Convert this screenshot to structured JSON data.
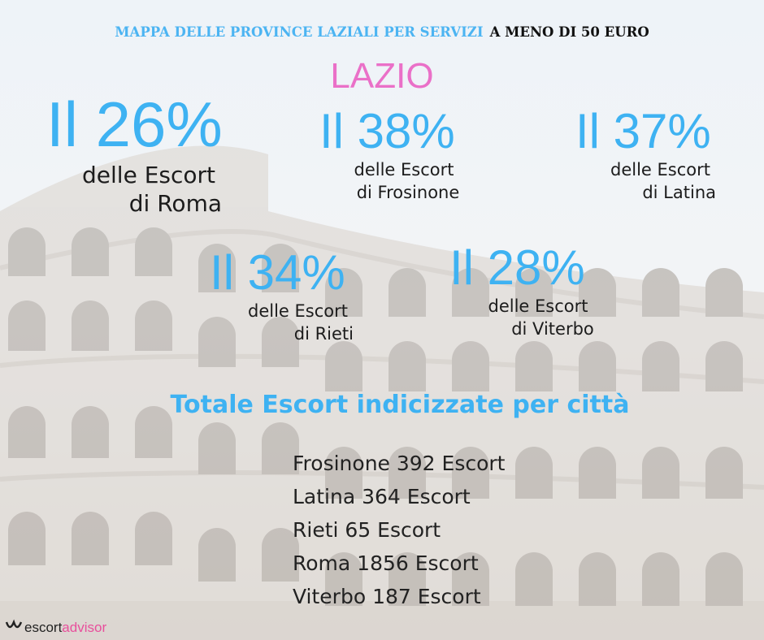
{
  "header": {
    "title_blue": "MAPPA DELLE PROVINCE  LAZIALI PER SERVIZI",
    "title_black": "A MENO DI 50 EURO",
    "region": "LAZIO"
  },
  "stats": [
    {
      "value": "Il 26%",
      "line1": "delle Escort",
      "line2": "di Roma"
    },
    {
      "value": "Il 38%",
      "line1": "delle Escort",
      "line2": "di Frosinone"
    },
    {
      "value": "Il 37%",
      "line1": "delle Escort",
      "line2": "di Latina"
    },
    {
      "value": "Il 34%",
      "line1": "delle Escort",
      "line2": "di Rieti"
    },
    {
      "value": "Il 28%",
      "line1": "delle Escort",
      "line2": "di Viterbo"
    }
  ],
  "totals": {
    "heading": "Totale Escort indicizzate per città",
    "items": [
      "Frosinone 392 Escort",
      "Latina 364 Escort",
      "Rieti 65 Escort",
      "Roma 1856 Escort",
      "Viterbo 187 Escort"
    ]
  },
  "logo": {
    "part1": "escort",
    "part2": "advisor"
  }
}
